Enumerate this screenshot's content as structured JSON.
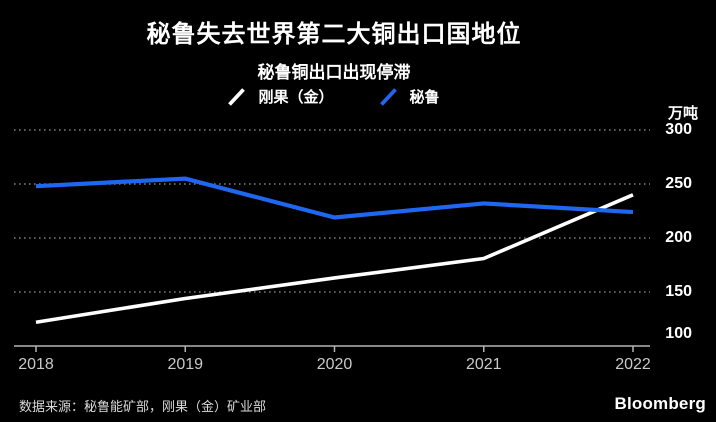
{
  "header": {
    "title": "秘鲁失去世界第二大铜出口国地位",
    "subtitle": "秘鲁铜出口出现停滞"
  },
  "legend": [
    {
      "label": "刚果（金）",
      "color": "#ffffff"
    },
    {
      "label": "秘鲁",
      "color": "#1f67f0"
    }
  ],
  "chart_data": {
    "type": "line",
    "x": [
      "2018",
      "2019",
      "2020",
      "2021",
      "2022"
    ],
    "series": [
      {
        "name": "刚果（金）",
        "color": "#ffffff",
        "width": 3.6,
        "values": [
          122,
          144,
          163,
          181,
          240
        ]
      },
      {
        "name": "秘鲁",
        "color": "#1f67f0",
        "width": 4.2,
        "values": [
          248,
          255,
          219,
          232,
          224
        ]
      }
    ],
    "unit_label": "万吨",
    "ylim": [
      100,
      300
    ],
    "yticks": [
      100,
      150,
      200,
      250,
      300
    ],
    "grid": "dotted-horizontal",
    "legend_position": "top-center"
  },
  "footer": {
    "source": "数据来源：秘鲁能矿部，刚果（金）矿业部",
    "brand": "Bloomberg"
  },
  "colors": {
    "background": "#000000",
    "grid": "#7a7a7a",
    "axis": "#b5b5b5",
    "x_tick_label": "#c9c9c9",
    "y_tick_label": "#ffffff",
    "text": "#ffffff",
    "source_text": "#dadada"
  }
}
